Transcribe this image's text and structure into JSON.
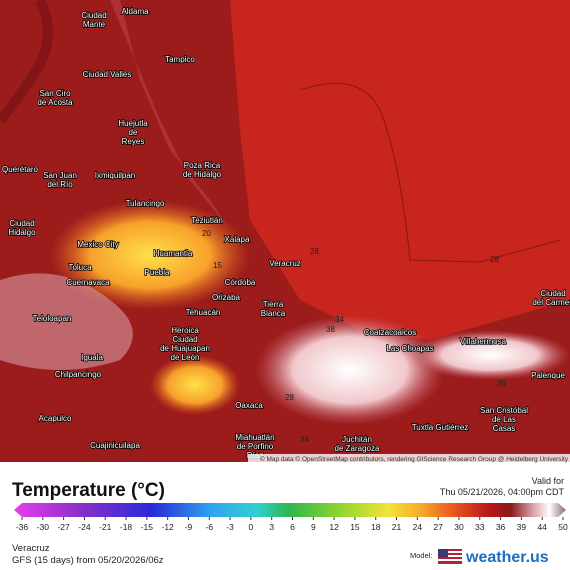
{
  "map": {
    "cities": [
      [
        "Ciudad",
        "Mante"
      ],
      [
        "Aldama"
      ],
      [
        "Tampico"
      ],
      [
        "Ciudad Valles"
      ],
      [
        "San Ciro",
        "de Acosta"
      ],
      [
        "Huejutla",
        "de",
        "Reyes"
      ],
      [
        "Poza Rica",
        "de Hidalgo"
      ],
      [
        "Querétaro"
      ],
      [
        "San Juan",
        "del Río"
      ],
      [
        "Ixmiquilpan"
      ],
      [
        "Tulancingo"
      ],
      [
        "Teziutlán"
      ],
      [
        "Ciudad",
        "Hidalgo"
      ],
      [
        "Xalapa"
      ],
      [
        "Mexico City"
      ],
      [
        "Huamantla"
      ],
      [
        "Veracruz"
      ],
      [
        "Toluca"
      ],
      [
        "Puebla"
      ],
      [
        "Cuernavaca"
      ],
      [
        "Córdoba"
      ],
      [
        "Orizaba"
      ],
      [
        "Tierra",
        "Blanca"
      ],
      [
        "Tehuacán"
      ],
      [
        "Teloloapan"
      ],
      [
        "Coatzacoalcos"
      ],
      [
        "Heroica",
        "Ciudad",
        "de Huajuapan",
        "de León"
      ],
      [
        "Las Choapas"
      ],
      [
        "Villahermosa"
      ],
      [
        "Iguala"
      ],
      [
        "Chilpancingo"
      ],
      [
        "Oaxaca"
      ],
      [
        "Acapulco"
      ],
      [
        "San Cristóbal",
        "de Las",
        "Casas"
      ],
      [
        "Tuxtla Gutiérrez"
      ],
      [
        "Miahuatlán",
        "de Porfirio",
        "Díaz"
      ],
      [
        "Juchitán",
        "de Zaragoza"
      ],
      [
        "Ciudad",
        "del Carmen"
      ],
      [
        "Palenque"
      ],
      [
        "Cuajinicuilapa"
      ]
    ],
    "isotherm_labels": [
      "28",
      "28",
      "28",
      "38",
      "34",
      "36",
      "34",
      "15",
      "20"
    ],
    "attribution": "© Map data © OpenStreetMap contributors, rendering GIScience Research Group @ Heidelberg University"
  },
  "legend": {
    "title": "Temperature (°C)",
    "valid_label": "Valid for",
    "valid_time": "Thu 05/21/2026, 04:00pm CDT",
    "ticks": [
      -36,
      -30,
      -27,
      -24,
      -21,
      -18,
      -15,
      -12,
      -9,
      -6,
      -3,
      0,
      3,
      6,
      9,
      12,
      15,
      18,
      21,
      24,
      27,
      30,
      33,
      36,
      39,
      44,
      50
    ]
  },
  "footer": {
    "location": "Veracruz",
    "run": "GFS (15 days) from 05/20/2026/06z",
    "model_label": "Model:",
    "brand": "weather.us"
  }
}
